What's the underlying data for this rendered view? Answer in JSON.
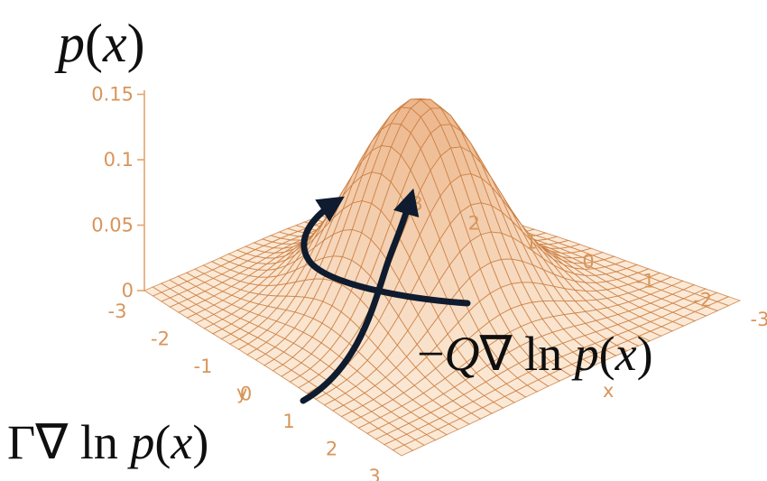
{
  "chart_data": {
    "type": "surface",
    "function": "bivariate Gaussian density",
    "title": "p(x)",
    "x_axis": {
      "label": "x",
      "ticks": [
        "-3",
        "-2",
        "-1",
        "0",
        "1",
        "2",
        "3"
      ],
      "range": [
        -3,
        3
      ]
    },
    "y_axis": {
      "label": "y",
      "ticks": [
        "-3",
        "-2",
        "-1",
        "0",
        "1",
        "2",
        "3"
      ],
      "range": [
        -3,
        3
      ]
    },
    "z_axis": {
      "ticks": [
        "0",
        "0.05",
        "0.1",
        "0.15"
      ],
      "range": [
        0,
        0.16
      ]
    },
    "peak": {
      "x": 0,
      "y": 0,
      "z": 0.159
    },
    "grid": 31,
    "annotations": [
      {
        "key": "q",
        "parts": [
          "−",
          "Q",
          "∇ ln ",
          "p",
          "(",
          "x",
          ")"
        ]
      },
      {
        "key": "g",
        "parts": [
          "Γ∇ ln ",
          "p",
          "(",
          "x",
          ")"
        ]
      }
    ],
    "colors": {
      "surface": "#f3cda6",
      "mesh": "#c97a3c",
      "axis": "#e3a56f",
      "tick": "#d8955a",
      "arrow": "#0f1b2e"
    }
  }
}
